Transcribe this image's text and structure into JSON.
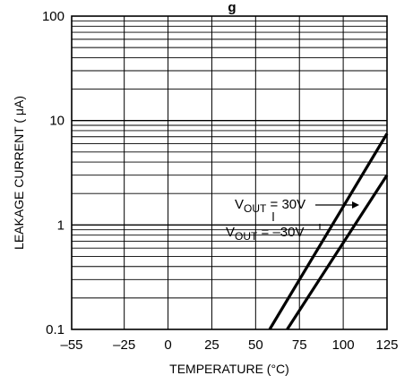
{
  "chart_data": {
    "type": "line",
    "title_fragment": "g",
    "xlabel": "TEMPERATURE (°C)",
    "ylabel": "LEAKAGE CURRENT ( μA)",
    "x_ticks": [
      -55,
      -25,
      0,
      25,
      50,
      75,
      100,
      125
    ],
    "x_tick_labels": [
      "–55",
      "–25",
      "0",
      "25",
      "50",
      "75",
      "100",
      "125"
    ],
    "xlim": [
      -55,
      125
    ],
    "y_scale": "log",
    "ylim": [
      0.1,
      100
    ],
    "y_ticks": [
      0.1,
      1,
      10,
      100
    ],
    "y_tick_labels": [
      "0.1",
      "1",
      "10",
      "100"
    ],
    "grid": true,
    "series": [
      {
        "name": "VOUT = 30V",
        "label_main": "V",
        "label_sub": "OUT",
        "label_rest": " = 30V",
        "x": [
          58,
          125
        ],
        "y": [
          0.1,
          7.5
        ]
      },
      {
        "name": "VOUT = –30V",
        "label_main": "V",
        "label_sub": "OUT",
        "label_rest": " = –30V",
        "x": [
          68,
          125
        ],
        "y": [
          0.1,
          3.0
        ]
      }
    ]
  }
}
